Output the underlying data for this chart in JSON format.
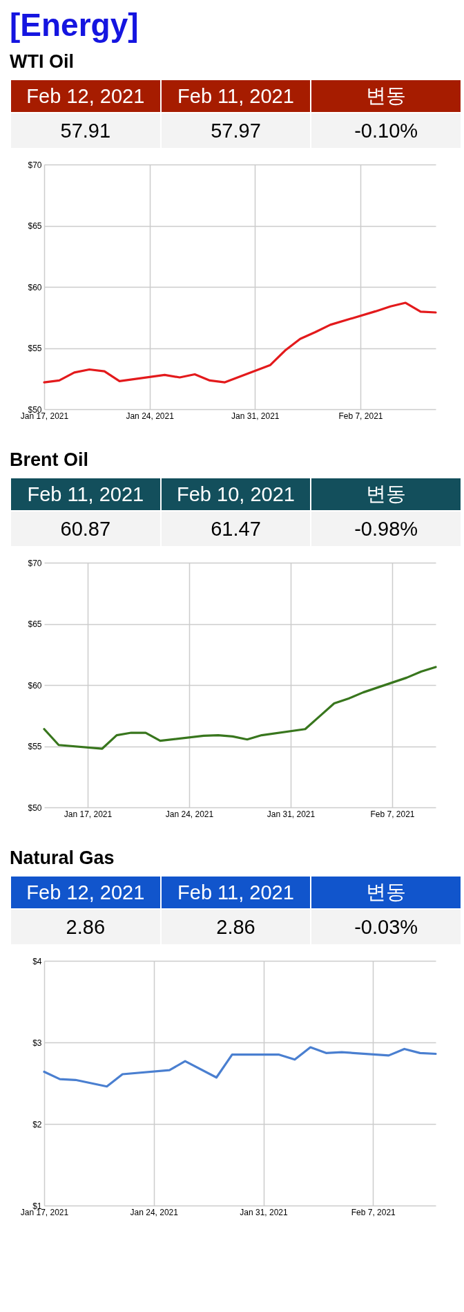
{
  "chart_data": [
    {
      "type": "other",
      "title": "[Energy]",
      "color": "#1515e0"
    },
    {
      "type": "other",
      "title": "WTI Oil",
      "color": "#a61c00",
      "categories": [
        "Feb 12, 2021",
        "Feb 11, 2021",
        "변동"
      ],
      "annotations": [
        "57.91",
        "57.97",
        "-0.10%"
      ]
    },
    {
      "type": "line",
      "x": [
        "2021-01-17",
        "2021-01-18",
        "2021-01-19",
        "2021-01-20",
        "2021-01-21",
        "2021-01-22",
        "2021-01-25",
        "2021-01-26",
        "2021-01-27",
        "2021-01-28",
        "2021-01-29",
        "2021-02-01",
        "2021-02-02",
        "2021-02-03",
        "2021-02-04",
        "2021-02-05",
        "2021-02-08",
        "2021-02-09",
        "2021-02-10",
        "2021-02-11",
        "2021-02-12"
      ],
      "series": [
        {
          "color": "#e31a1c",
          "values": [
            52.2,
            52.35,
            53.0,
            53.25,
            53.1,
            52.3,
            52.8,
            52.6,
            52.85,
            52.35,
            52.2,
            53.6,
            54.8,
            55.75,
            56.3,
            56.9,
            58.0,
            58.4,
            58.7,
            57.97,
            57.91
          ]
        }
      ],
      "xlim": [
        "2021-01-17",
        "2021-02-12"
      ],
      "xticks": [
        {
          "value": "2021-01-17",
          "label": "Jan 17, 2021"
        },
        {
          "value": "2021-01-24",
          "label": "Jan 24, 2021"
        },
        {
          "value": "2021-01-31",
          "label": "Jan 31, 2021"
        },
        {
          "value": "2021-02-07",
          "label": "Feb 7, 2021"
        }
      ],
      "ylim": [
        50,
        70
      ],
      "yticks": [
        {
          "value": 50,
          "label": "$50"
        },
        {
          "value": 55,
          "label": "$55"
        },
        {
          "value": 60,
          "label": "$60"
        },
        {
          "value": 65,
          "label": "$65"
        },
        {
          "value": 70,
          "label": "$70"
        }
      ],
      "grid": true
    },
    {
      "type": "other",
      "title": "Brent Oil",
      "color": "#134f5c",
      "categories": [
        "Feb 11, 2021",
        "Feb 10, 2021",
        "변동"
      ],
      "annotations": [
        "60.87",
        "61.47",
        "-0.98%"
      ]
    },
    {
      "type": "line",
      "x": [
        "2021-01-14",
        "2021-01-15",
        "2021-01-18",
        "2021-01-19",
        "2021-01-20",
        "2021-01-21",
        "2021-01-22",
        "2021-01-25",
        "2021-01-26",
        "2021-01-27",
        "2021-01-28",
        "2021-01-29",
        "2021-02-01",
        "2021-02-02",
        "2021-02-03",
        "2021-02-04",
        "2021-02-05",
        "2021-02-08",
        "2021-02-09",
        "2021-02-10"
      ],
      "series": [
        {
          "color": "#38761d",
          "values": [
            56.4,
            55.1,
            54.8,
            55.9,
            56.1,
            56.1,
            55.45,
            55.85,
            55.9,
            55.8,
            55.55,
            55.9,
            56.4,
            57.45,
            58.5,
            58.9,
            59.4,
            60.6,
            61.1,
            61.47
          ]
        }
      ],
      "xlim": [
        "2021-01-14",
        "2021-02-10"
      ],
      "xticks": [
        {
          "value": "2021-01-17",
          "label": "Jan 17, 2021"
        },
        {
          "value": "2021-01-24",
          "label": "Jan 24, 2021"
        },
        {
          "value": "2021-01-31",
          "label": "Jan 31, 2021"
        },
        {
          "value": "2021-02-07",
          "label": "Feb 7, 2021"
        }
      ],
      "ylim": [
        50,
        70
      ],
      "yticks": [
        {
          "value": 50,
          "label": "$50"
        },
        {
          "value": 55,
          "label": "$55"
        },
        {
          "value": 60,
          "label": "$60"
        },
        {
          "value": 65,
          "label": "$65"
        },
        {
          "value": 70,
          "label": "$70"
        }
      ],
      "grid": true
    },
    {
      "type": "other",
      "title": "Natural Gas",
      "color": "#1155cc",
      "categories": [
        "Feb 12, 2021",
        "Feb 11, 2021",
        "변동"
      ],
      "annotations": [
        "2.86",
        "2.86",
        "-0.03%"
      ]
    },
    {
      "type": "line",
      "x": [
        "2021-01-17",
        "2021-01-18",
        "2021-01-19",
        "2021-01-21",
        "2021-01-22",
        "2021-01-25",
        "2021-01-26",
        "2021-01-28",
        "2021-01-29",
        "2021-02-01",
        "2021-02-02",
        "2021-02-03",
        "2021-02-04",
        "2021-02-05",
        "2021-02-08",
        "2021-02-09",
        "2021-02-10",
        "2021-02-11"
      ],
      "series": [
        {
          "color": "#4a7fd0",
          "values": [
            2.64,
            2.55,
            2.54,
            2.46,
            2.61,
            2.66,
            2.77,
            2.57,
            2.85,
            2.85,
            2.79,
            2.94,
            2.87,
            2.88,
            2.84,
            2.92,
            2.87,
            2.86
          ]
        }
      ],
      "xlim": [
        "2021-01-17",
        "2021-02-11"
      ],
      "xticks": [
        {
          "value": "2021-01-17",
          "label": "Jan 17, 2021"
        },
        {
          "value": "2021-01-24",
          "label": "Jan 24, 2021"
        },
        {
          "value": "2021-01-31",
          "label": "Jan 31, 2021"
        },
        {
          "value": "2021-02-07",
          "label": "Feb 7, 2021"
        }
      ],
      "ylim": [
        1,
        4
      ],
      "yticks": [
        {
          "value": 1,
          "label": "$1"
        },
        {
          "value": 2,
          "label": "$2"
        },
        {
          "value": 3,
          "label": "$3"
        },
        {
          "value": 4,
          "label": "$4"
        }
      ],
      "grid": true
    }
  ]
}
